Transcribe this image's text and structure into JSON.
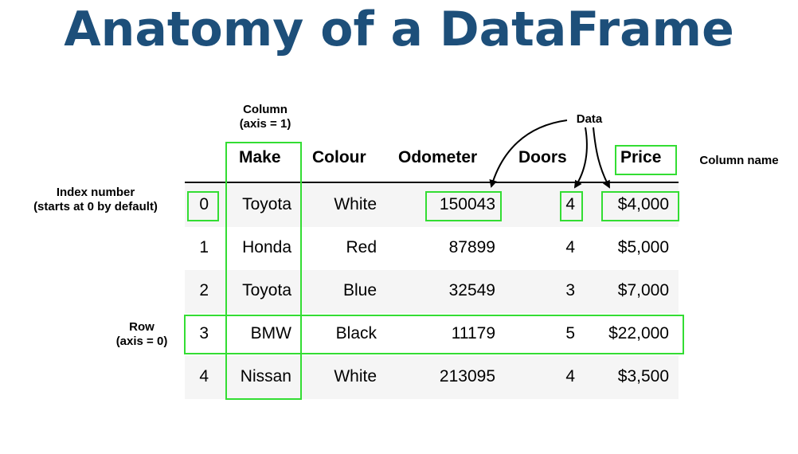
{
  "title": "Anatomy of a DataFrame",
  "annotations": {
    "column_line1": "Column",
    "column_line2": "(axis = 1)",
    "data": "Data",
    "column_name": "Column name",
    "index_line1": "Index number",
    "index_line2": "(starts at 0 by default)",
    "row_line1": "Row",
    "row_line2": "(axis = 0)"
  },
  "table": {
    "columns": [
      "Make",
      "Colour",
      "Odometer",
      "Doors",
      "Price"
    ],
    "rows": [
      {
        "index": "0",
        "make": "Toyota",
        "colour": "White",
        "odometer": "150043",
        "doors": "4",
        "price": "$4,000"
      },
      {
        "index": "1",
        "make": "Honda",
        "colour": "Red",
        "odometer": "87899",
        "doors": "4",
        "price": "$5,000"
      },
      {
        "index": "2",
        "make": "Toyota",
        "colour": "Blue",
        "odometer": "32549",
        "doors": "3",
        "price": "$7,000"
      },
      {
        "index": "3",
        "make": "BMW",
        "colour": "Black",
        "odometer": "11179",
        "doors": "5",
        "price": "$22,000"
      },
      {
        "index": "4",
        "make": "Nissan",
        "colour": "White",
        "odometer": "213095",
        "doors": "4",
        "price": "$3,500"
      }
    ]
  },
  "colors": {
    "title": "#1d4f7a",
    "highlight": "#33dd33",
    "stripe": "#f5f5f5"
  }
}
